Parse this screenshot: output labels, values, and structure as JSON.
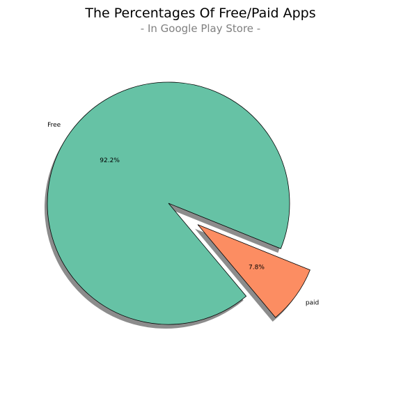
{
  "chart_data": {
    "type": "pie",
    "title": "The Percentages Of Free/Paid Apps",
    "subtitle": "- In Google Play Store -",
    "slices": [
      {
        "label": "Free",
        "value": 92.2,
        "pct_label": "92.2%",
        "color": "#66c2a5",
        "exploded": false
      },
      {
        "label": "paid",
        "value": 7.8,
        "pct_label": "7.8%",
        "color": "#fc8d62",
        "exploded": true
      }
    ],
    "shadow": true
  }
}
